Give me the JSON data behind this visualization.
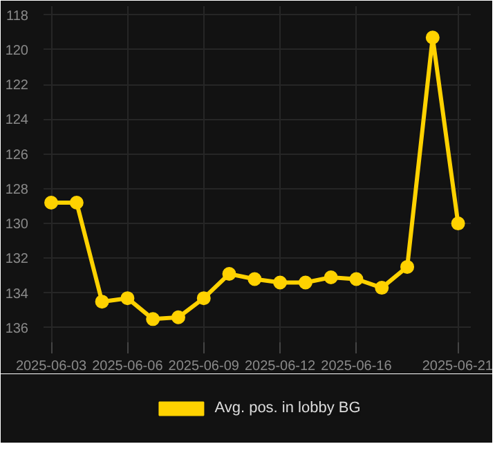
{
  "chart_data": {
    "type": "line",
    "categories": [
      "2025-06-03",
      null,
      null,
      "2025-06-06",
      null,
      null,
      "2025-06-09",
      null,
      null,
      "2025-06-12",
      null,
      null,
      "2025-06-16",
      null,
      null,
      null,
      "2025-06-21"
    ],
    "series": [
      {
        "name": "Avg. pos. in lobby BG",
        "color": "#ffd200",
        "values": [
          128.8,
          128.8,
          134.5,
          134.3,
          135.5,
          135.4,
          134.3,
          132.9,
          133.2,
          133.4,
          133.4,
          133.1,
          133.2,
          133.7,
          132.5,
          119.3,
          130.0
        ]
      }
    ],
    "ylim": [
      137,
      117.5
    ],
    "yticks": [
      118,
      120,
      122,
      124,
      126,
      128,
      130,
      132,
      134,
      136
    ],
    "grid": true,
    "legend": "bottom",
    "marker": "circle",
    "line_style": "solid"
  }
}
